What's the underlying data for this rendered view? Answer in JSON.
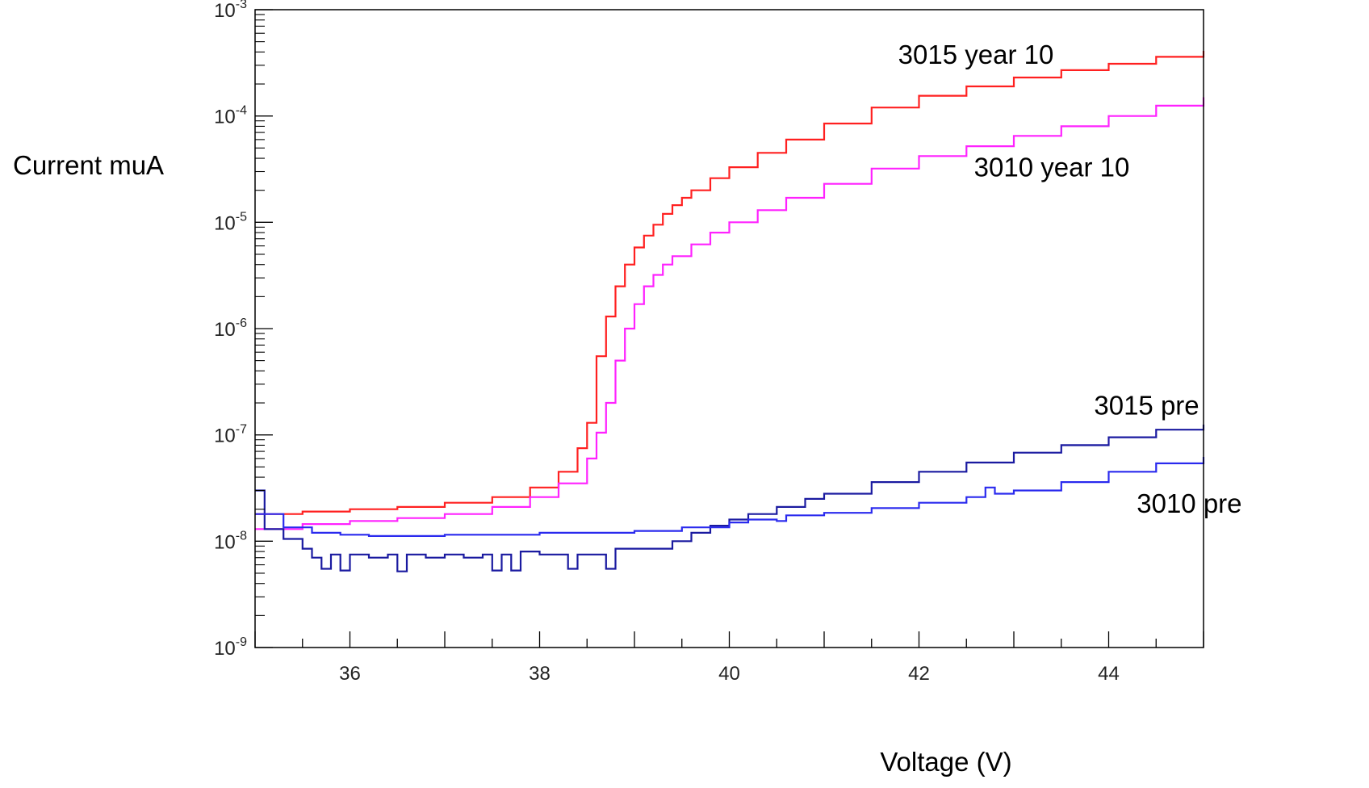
{
  "chart_data": {
    "type": "line",
    "title": "",
    "xlabel": "Voltage (V)",
    "ylabel": "Current muA",
    "xlim": [
      35,
      45
    ],
    "ylim": [
      1e-09,
      0.001
    ],
    "yscale": "log",
    "grid": false,
    "x_ticks": [
      {
        "value": 36,
        "label": "36"
      },
      {
        "value": 38,
        "label": "38"
      },
      {
        "value": 40,
        "label": "40"
      },
      {
        "value": 42,
        "label": "42"
      },
      {
        "value": 44,
        "label": "44"
      }
    ],
    "y_ticks": [
      {
        "value": 1e-09,
        "base": "10",
        "exp": "-9"
      },
      {
        "value": 1e-08,
        "base": "10",
        "exp": "-8"
      },
      {
        "value": 1e-07,
        "base": "10",
        "exp": "-7"
      },
      {
        "value": 1e-06,
        "base": "10",
        "exp": "-6"
      },
      {
        "value": 1e-05,
        "base": "10",
        "exp": "-5"
      },
      {
        "value": 0.0001,
        "base": "10",
        "exp": "-4"
      },
      {
        "value": 0.001,
        "base": "10",
        "exp": "-3"
      }
    ],
    "series": [
      {
        "name": "3015 year 10",
        "color": "#ff2020",
        "label_at": [
          42.6,
          0.00031
        ],
        "points": [
          [
            35.0,
            1.8e-08
          ],
          [
            35.5,
            1.9e-08
          ],
          [
            36.0,
            2e-08
          ],
          [
            36.5,
            2.1e-08
          ],
          [
            37.0,
            2.3e-08
          ],
          [
            37.5,
            2.6e-08
          ],
          [
            37.9,
            3.2e-08
          ],
          [
            38.2,
            4.5e-08
          ],
          [
            38.4,
            7.5e-08
          ],
          [
            38.5,
            1.3e-07
          ],
          [
            38.6,
            5.5e-07
          ],
          [
            38.7,
            1.3e-06
          ],
          [
            38.8,
            2.5e-06
          ],
          [
            38.9,
            4e-06
          ],
          [
            39.0,
            5.8e-06
          ],
          [
            39.1,
            7.5e-06
          ],
          [
            39.2,
            9.5e-06
          ],
          [
            39.3,
            1.2e-05
          ],
          [
            39.4,
            1.45e-05
          ],
          [
            39.5,
            1.7e-05
          ],
          [
            39.6,
            2e-05
          ],
          [
            39.8,
            2.6e-05
          ],
          [
            40.0,
            3.3e-05
          ],
          [
            40.3,
            4.5e-05
          ],
          [
            40.6,
            6e-05
          ],
          [
            41.0,
            8.5e-05
          ],
          [
            41.5,
            0.00012
          ],
          [
            42.0,
            0.000155
          ],
          [
            42.5,
            0.00019
          ],
          [
            43.0,
            0.00023
          ],
          [
            43.5,
            0.00027
          ],
          [
            44.0,
            0.00031
          ],
          [
            44.5,
            0.00036
          ],
          [
            45.0,
            0.00041
          ]
        ]
      },
      {
        "name": "3010 year 10",
        "color": "#ff22ff",
        "label_at": [
          43.4,
          2.7e-05
        ],
        "points": [
          [
            35.0,
            1.3e-08
          ],
          [
            35.5,
            1.45e-08
          ],
          [
            36.0,
            1.55e-08
          ],
          [
            36.5,
            1.65e-08
          ],
          [
            37.0,
            1.8e-08
          ],
          [
            37.5,
            2.1e-08
          ],
          [
            37.9,
            2.6e-08
          ],
          [
            38.2,
            3.5e-08
          ],
          [
            38.5,
            6e-08
          ],
          [
            38.6,
            1.05e-07
          ],
          [
            38.7,
            2e-07
          ],
          [
            38.8,
            5e-07
          ],
          [
            38.9,
            1e-06
          ],
          [
            39.0,
            1.7e-06
          ],
          [
            39.1,
            2.5e-06
          ],
          [
            39.2,
            3.2e-06
          ],
          [
            39.3,
            4e-06
          ],
          [
            39.4,
            4.8e-06
          ],
          [
            39.6,
            6.2e-06
          ],
          [
            39.8,
            8e-06
          ],
          [
            40.0,
            1e-05
          ],
          [
            40.3,
            1.3e-05
          ],
          [
            40.6,
            1.7e-05
          ],
          [
            41.0,
            2.3e-05
          ],
          [
            41.5,
            3.2e-05
          ],
          [
            42.0,
            4.2e-05
          ],
          [
            42.5,
            5.2e-05
          ],
          [
            43.0,
            6.5e-05
          ],
          [
            43.5,
            8e-05
          ],
          [
            44.0,
            0.0001
          ],
          [
            44.5,
            0.000125
          ],
          [
            45.0,
            0.00015
          ]
        ]
      },
      {
        "name": "3015 pre",
        "color": "#1a1aa0",
        "label_at": [
          44.4,
          1.55e-07
        ],
        "points": [
          [
            35.0,
            3e-08
          ],
          [
            35.1,
            1.3e-08
          ],
          [
            35.3,
            1.05e-08
          ],
          [
            35.5,
            8.5e-09
          ],
          [
            35.6,
            7e-09
          ],
          [
            35.7,
            5.5e-09
          ],
          [
            35.8,
            7.5e-09
          ],
          [
            35.9,
            5.3e-09
          ],
          [
            36.0,
            7.5e-09
          ],
          [
            36.2,
            7e-09
          ],
          [
            36.4,
            7.5e-09
          ],
          [
            36.5,
            5.2e-09
          ],
          [
            36.6,
            7.5e-09
          ],
          [
            36.8,
            7e-09
          ],
          [
            37.0,
            7.5e-09
          ],
          [
            37.2,
            7e-09
          ],
          [
            37.4,
            7.5e-09
          ],
          [
            37.5,
            5.3e-09
          ],
          [
            37.6,
            7.5e-09
          ],
          [
            37.7,
            5.3e-09
          ],
          [
            37.8,
            8e-09
          ],
          [
            38.0,
            7.5e-09
          ],
          [
            38.2,
            7.5e-09
          ],
          [
            38.3,
            5.5e-09
          ],
          [
            38.4,
            7.5e-09
          ],
          [
            38.6,
            7.5e-09
          ],
          [
            38.7,
            5.5e-09
          ],
          [
            38.8,
            8.5e-09
          ],
          [
            39.0,
            8.5e-09
          ],
          [
            39.2,
            8.5e-09
          ],
          [
            39.4,
            1e-08
          ],
          [
            39.6,
            1.2e-08
          ],
          [
            39.8,
            1.4e-08
          ],
          [
            40.0,
            1.6e-08
          ],
          [
            40.2,
            1.8e-08
          ],
          [
            40.5,
            2.1e-08
          ],
          [
            40.8,
            2.5e-08
          ],
          [
            41.0,
            2.8e-08
          ],
          [
            41.5,
            3.6e-08
          ],
          [
            42.0,
            4.5e-08
          ],
          [
            42.5,
            5.5e-08
          ],
          [
            43.0,
            6.8e-08
          ],
          [
            43.5,
            8e-08
          ],
          [
            44.0,
            9.5e-08
          ],
          [
            44.5,
            1.12e-07
          ],
          [
            45.0,
            1.25e-07
          ]
        ]
      },
      {
        "name": "3010 pre",
        "color": "#2a2aee",
        "label_at": [
          44.85,
          1.85e-08
        ],
        "points": [
          [
            35.0,
            1.8e-08
          ],
          [
            35.3,
            1.35e-08
          ],
          [
            35.6,
            1.2e-08
          ],
          [
            35.9,
            1.15e-08
          ],
          [
            36.2,
            1.12e-08
          ],
          [
            36.5,
            1.12e-08
          ],
          [
            37.0,
            1.15e-08
          ],
          [
            37.5,
            1.15e-08
          ],
          [
            38.0,
            1.2e-08
          ],
          [
            38.5,
            1.2e-08
          ],
          [
            39.0,
            1.25e-08
          ],
          [
            39.5,
            1.35e-08
          ],
          [
            40.0,
            1.5e-08
          ],
          [
            40.2,
            1.6e-08
          ],
          [
            40.5,
            1.55e-08
          ],
          [
            40.6,
            1.75e-08
          ],
          [
            41.0,
            1.85e-08
          ],
          [
            41.5,
            2.05e-08
          ],
          [
            42.0,
            2.3e-08
          ],
          [
            42.5,
            2.6e-08
          ],
          [
            42.7,
            3.2e-08
          ],
          [
            42.8,
            2.8e-08
          ],
          [
            43.0,
            3e-08
          ],
          [
            43.5,
            3.6e-08
          ],
          [
            44.0,
            4.5e-08
          ],
          [
            44.5,
            5.4e-08
          ],
          [
            45.0,
            6.2e-08
          ]
        ]
      }
    ]
  }
}
